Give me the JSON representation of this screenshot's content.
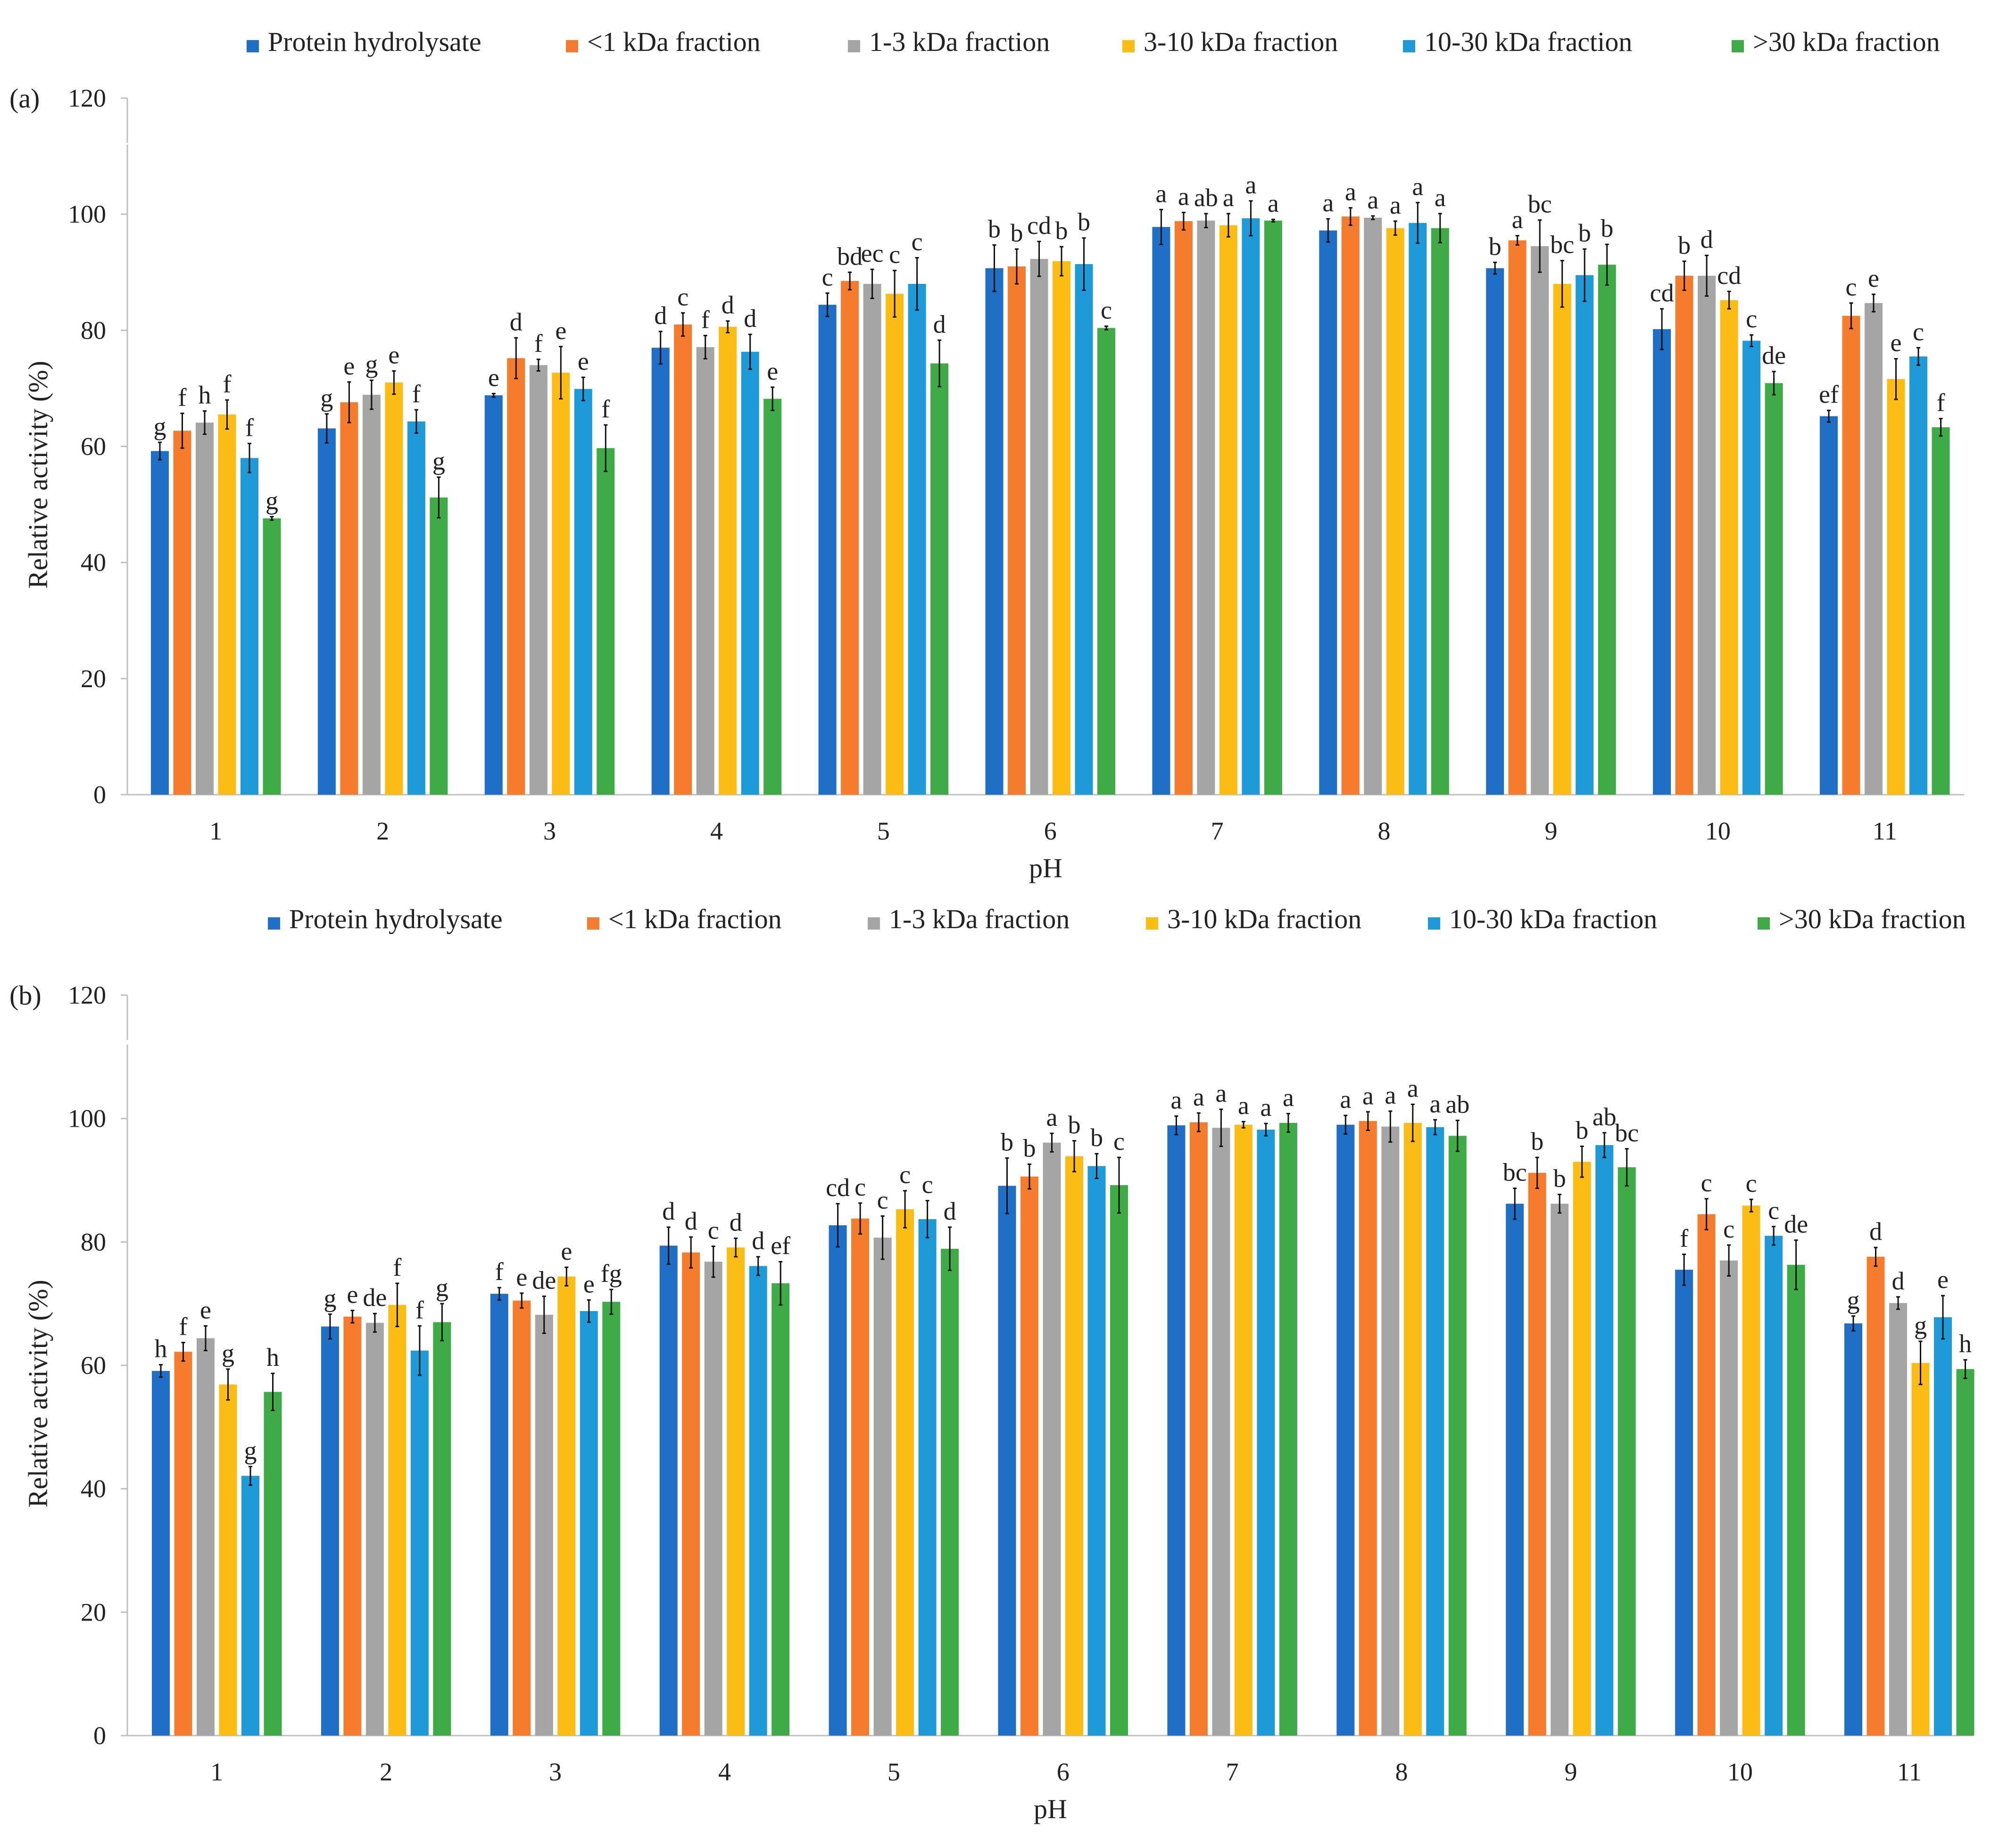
{
  "figure": {
    "colors": {
      "Protein hydrolysate": "#1f6fc6",
      "<1 kDa fraction": "#f47c2c",
      "1-3 kDa fraction": "#a5a5a5",
      "3-10 kDa fraction": "#fbbd14",
      "10-30 kDa fraction": "#1e9ad8",
      ">30 kDa fraction": "#3fab47"
    }
  },
  "chart_data": [
    {
      "panel_label": "(a)",
      "type": "bar",
      "xlabel": "pH",
      "ylabel": "Relative activity (%)",
      "ylim": [
        0,
        120
      ],
      "yticks": [
        0,
        20,
        40,
        60,
        80,
        100,
        120
      ],
      "grid": false,
      "legend_position": "top",
      "categories": [
        "1",
        "2",
        "3",
        "4",
        "5",
        "6",
        "7",
        "8",
        "9",
        "10",
        "11"
      ],
      "series": [
        {
          "name": "Protein hydrolysate",
          "values": [
            59.2,
            63.1,
            68.8,
            77.0,
            84.4,
            90.7,
            97.8,
            97.2,
            90.7,
            80.2,
            65.2
          ],
          "errors": [
            1.5,
            2.5,
            0.3,
            2.8,
            2.0,
            4.0,
            3.0,
            2.0,
            1.0,
            3.5,
            1.0
          ],
          "letters": [
            "g",
            "g",
            "e",
            "d",
            "c",
            "b",
            "a",
            "a",
            "b",
            "cd",
            "ef"
          ]
        },
        {
          "name": "<1 kDa fraction",
          "values": [
            62.7,
            67.6,
            75.2,
            81.0,
            88.5,
            91.0,
            98.8,
            99.6,
            95.5,
            89.4,
            82.5
          ],
          "errors": [
            3.0,
            3.5,
            3.5,
            2.0,
            1.5,
            3.0,
            1.5,
            1.5,
            0.8,
            2.5,
            2.2
          ],
          "letters": [
            "f",
            "e",
            "d",
            "c",
            "bd",
            "b",
            "a",
            "a",
            "a",
            "b",
            "c"
          ]
        },
        {
          "name": "1-3 kDa fraction",
          "values": [
            64.1,
            68.9,
            74.0,
            77.1,
            88.0,
            92.3,
            98.9,
            99.4,
            94.5,
            89.4,
            84.7
          ],
          "errors": [
            2.0,
            2.5,
            1.0,
            2.0,
            2.5,
            3.0,
            1.2,
            0.3,
            4.5,
            3.5,
            1.5
          ],
          "letters": [
            "h",
            "g",
            "f",
            "f",
            "ec",
            "cd",
            "ab",
            "a",
            "bc",
            "d",
            "e"
          ]
        },
        {
          "name": "3-10 kDa fraction",
          "values": [
            65.5,
            71.0,
            72.7,
            80.6,
            86.3,
            91.9,
            98.1,
            97.6,
            88.0,
            85.2,
            71.6
          ],
          "errors": [
            2.5,
            2.0,
            4.5,
            1.0,
            4.0,
            2.5,
            2.0,
            1.2,
            4.0,
            1.5,
            3.5
          ],
          "letters": [
            "f",
            "e",
            "e",
            "d",
            "c",
            "b",
            "a",
            "a",
            "bc",
            "cd",
            "e"
          ]
        },
        {
          "name": "10-30 kDa fraction",
          "values": [
            58.0,
            64.3,
            69.9,
            76.3,
            88.0,
            91.4,
            99.3,
            98.5,
            89.5,
            78.2,
            75.5
          ],
          "errors": [
            2.5,
            2.0,
            2.0,
            3.0,
            4.5,
            4.5,
            3.0,
            3.5,
            4.5,
            1.0,
            1.5
          ],
          "letters": [
            "f",
            "f",
            "e",
            "d",
            "c",
            "b",
            "a",
            "a",
            "b",
            "c",
            "c"
          ]
        },
        {
          "name": ">30 kDa fraction",
          "values": [
            47.6,
            51.2,
            59.7,
            68.2,
            74.3,
            80.4,
            98.9,
            97.6,
            91.3,
            70.9,
            63.3
          ],
          "errors": [
            0.3,
            3.5,
            4.0,
            2.0,
            4.0,
            0.3,
            0.2,
            2.5,
            3.5,
            2.0,
            1.5
          ],
          "letters": [
            "g",
            "g",
            "f",
            "e",
            "d",
            "c",
            "a",
            "a",
            "b",
            "de",
            "f"
          ]
        }
      ]
    },
    {
      "panel_label": "(b)",
      "type": "bar",
      "xlabel": "pH",
      "ylabel": "Relative activity (%)",
      "ylim": [
        0,
        120
      ],
      "yticks": [
        0,
        20,
        40,
        60,
        80,
        100,
        120
      ],
      "grid": false,
      "legend_position": "top",
      "categories": [
        "1",
        "2",
        "3",
        "4",
        "5",
        "6",
        "7",
        "8",
        "9",
        "10",
        "11"
      ],
      "series": [
        {
          "name": "Protein hydrolysate",
          "values": [
            59.1,
            66.3,
            71.6,
            79.4,
            82.7,
            89.1,
            98.9,
            99.0,
            86.2,
            75.5,
            66.8
          ],
          "errors": [
            1.0,
            2.0,
            1.0,
            3.0,
            3.5,
            4.5,
            1.5,
            1.5,
            2.5,
            2.5,
            1.2
          ],
          "letters": [
            "h",
            "g",
            "f",
            "d",
            "cd",
            "b",
            "a",
            "a",
            "bc",
            "f",
            "g"
          ]
        },
        {
          "name": "<1 kDa fraction",
          "values": [
            62.2,
            67.9,
            70.5,
            78.3,
            83.8,
            90.6,
            99.4,
            99.6,
            91.2,
            84.5,
            77.6
          ],
          "errors": [
            1.5,
            1.0,
            1.2,
            2.5,
            2.5,
            2.0,
            1.5,
            1.5,
            2.5,
            2.5,
            1.5
          ],
          "letters": [
            "f",
            "e",
            "e",
            "d",
            "c",
            "b",
            "a",
            "a",
            "b",
            "c",
            "d"
          ]
        },
        {
          "name": "1-3 kDa fraction",
          "values": [
            64.4,
            66.9,
            68.2,
            76.8,
            80.7,
            96.1,
            98.5,
            98.7,
            86.2,
            77.0,
            70.1
          ],
          "errors": [
            2.0,
            1.5,
            3.0,
            2.5,
            3.5,
            1.5,
            3.0,
            2.5,
            1.5,
            2.5,
            1.0
          ],
          "letters": [
            "e",
            "de",
            "de",
            "c",
            "c",
            "a",
            "a",
            "a",
            "b",
            "c",
            "d"
          ]
        },
        {
          "name": "3-10 kDa fraction",
          "values": [
            56.9,
            69.8,
            74.4,
            79.1,
            85.3,
            93.9,
            99.0,
            99.3,
            93.0,
            85.9,
            60.4
          ],
          "errors": [
            2.5,
            3.5,
            1.5,
            1.5,
            3.0,
            2.5,
            0.5,
            3.0,
            2.5,
            1.0,
            3.5
          ],
          "letters": [
            "g",
            "f",
            "e",
            "d",
            "c",
            "b",
            "a",
            "a",
            "b",
            "c",
            "g"
          ]
        },
        {
          "name": "10-30 kDa fraction",
          "values": [
            42.1,
            62.4,
            68.8,
            76.1,
            83.7,
            92.3,
            98.2,
            98.6,
            95.7,
            81.0,
            67.8
          ],
          "errors": [
            1.5,
            4.0,
            1.8,
            1.5,
            3.0,
            2.0,
            1.0,
            1.2,
            2.0,
            1.5,
            3.5
          ],
          "letters": [
            "g",
            "f",
            "e",
            "d",
            "c",
            "b",
            "a",
            "a",
            "ab",
            "c",
            "e"
          ]
        },
        {
          "name": ">30 kDa fraction",
          "values": [
            55.7,
            67.0,
            70.3,
            73.3,
            78.9,
            89.2,
            99.3,
            97.2,
            92.1,
            76.3,
            59.4
          ],
          "errors": [
            3.0,
            3.0,
            2.0,
            3.5,
            3.5,
            4.5,
            1.5,
            2.5,
            3.0,
            4.0,
            1.5
          ],
          "letters": [
            "h",
            "g",
            "fg",
            "ef",
            "d",
            "c",
            "a",
            "ab",
            "bc",
            "de",
            "h"
          ]
        }
      ]
    }
  ]
}
